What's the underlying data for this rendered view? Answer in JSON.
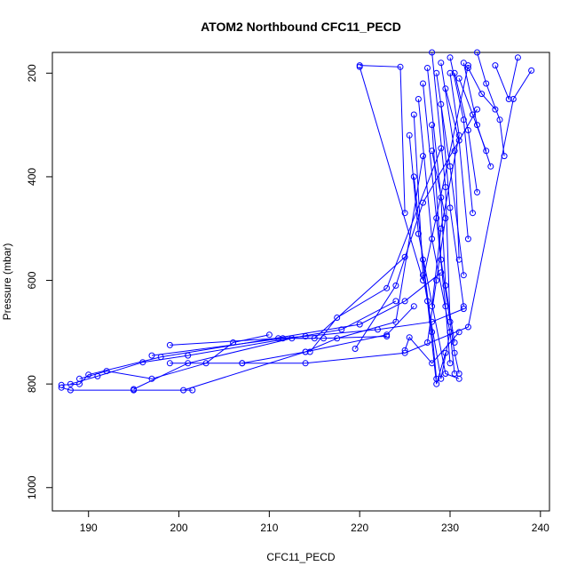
{
  "chart_data": {
    "type": "line",
    "title": "ATOM2 Northbound CFC11_PECD",
    "xlabel": "CFC11_PECD",
    "ylabel": "Pressure (mbar)",
    "xlim": [
      186,
      241
    ],
    "ylim": [
      1045,
      160
    ],
    "y_inverted": true,
    "xticks": [
      190,
      200,
      210,
      220,
      230,
      240
    ],
    "yticks": [
      200,
      400,
      600,
      800,
      1000
    ],
    "grid": false,
    "legend": "none",
    "colors": {
      "series": "#0000ff",
      "axis": "#000000",
      "background": "#ffffff"
    },
    "marker": "open-circle",
    "series": [
      {
        "x": [
          187.0,
          188.0,
          195.0,
          201.5
        ],
        "y": [
          807,
          812,
          812,
          812
        ]
      },
      {
        "x": [
          187.0,
          189.0,
          190.0,
          198.0,
          220.0,
          225.0,
          229.0
        ],
        "y": [
          802,
          800,
          782,
          748,
          685,
          640,
          585
        ]
      },
      {
        "x": [
          188.0,
          191.0,
          196.0,
          201.0,
          218.0,
          224.0
        ],
        "y": [
          800,
          785,
          758,
          745,
          695,
          640
        ]
      },
      {
        "x": [
          189.0,
          192.0,
          197.0,
          203.0,
          206.0,
          210.0
        ],
        "y": [
          790,
          775,
          790,
          760,
          720,
          705
        ]
      },
      {
        "x": [
          199.0,
          211.0,
          214.0,
          222.0,
          228.0,
          231.5
        ],
        "y": [
          725,
          712,
          708,
          695,
          680,
          655
        ]
      },
      {
        "x": [
          197.0,
          211.5,
          216.0,
          223.0
        ],
        "y": [
          745,
          712,
          712,
          708
        ]
      },
      {
        "x": [
          199.0,
          207.0,
          214.0,
          225.0,
          232.0,
          237.0,
          239.0
        ],
        "y": [
          760,
          760,
          760,
          740,
          690,
          250,
          195
        ]
      },
      {
        "x": [
          207.0,
          214.0,
          223.0,
          226.0
        ],
        "y": [
          760,
          738,
          705,
          650
        ]
      },
      {
        "x": [
          195.0,
          201.0,
          212.5,
          215.0,
          225.0
        ],
        "y": [
          810,
          760,
          712,
          712,
          555
        ]
      },
      {
        "x": [
          200.5,
          214.0,
          217.5,
          224.0,
          227.0
        ],
        "y": [
          812,
          738,
          712,
          680,
          360
        ]
      },
      {
        "x": [
          214.5,
          217.5,
          223.0,
          229.0
        ],
        "y": [
          738,
          672,
          615,
          345
        ]
      },
      {
        "x": [
          219.5,
          224.0,
          227.0,
          233.0
        ],
        "y": [
          732,
          610,
          450,
          270
        ]
      },
      {
        "x": [
          220.0,
          224.5,
          225.0
        ],
        "y": [
          185,
          188,
          470
        ]
      },
      {
        "x": [
          220.0,
          227.0,
          232.0
        ],
        "y": [
          188,
          600,
          185
        ]
      },
      {
        "x": [
          225.0,
          225.5,
          228.0,
          231.0
        ],
        "y": [
          735,
          710,
          760,
          700
        ]
      },
      {
        "x": [
          225.5,
          226.5,
          229.5,
          231.0
        ],
        "y": [
          320,
          510,
          780,
          790
        ]
      },
      {
        "x": [
          226.0,
          227.0,
          229.0,
          230.0
        ],
        "y": [
          280,
          590,
          790,
          700
        ]
      },
      {
        "x": [
          226.0,
          227.5,
          228.5,
          229.5
        ],
        "y": [
          400,
          640,
          800,
          740
        ]
      },
      {
        "x": [
          226.5,
          228.0,
          230.0,
          230.5
        ],
        "y": [
          250,
          520,
          700,
          780
        ]
      },
      {
        "x": [
          227.0,
          228.5,
          229.5,
          230.0
        ],
        "y": [
          220,
          480,
          650,
          760
        ]
      },
      {
        "x": [
          227.0,
          228.0,
          228.5
        ],
        "y": [
          560,
          700,
          790
        ]
      },
      {
        "x": [
          227.5,
          229.0,
          229.5,
          230.5
        ],
        "y": [
          190,
          440,
          610,
          720
        ]
      },
      {
        "x": [
          228.0,
          229.0,
          230.5,
          231.0
        ],
        "y": [
          300,
          560,
          740,
          780
        ]
      },
      {
        "x": [
          228.0,
          229.5,
          230.0
        ],
        "y": [
          160,
          420,
          680
        ]
      },
      {
        "x": [
          228.5,
          230.0,
          231.5
        ],
        "y": [
          200,
          380,
          590
        ]
      },
      {
        "x": [
          229.0,
          230.5,
          231.0
        ],
        "y": [
          180,
          350,
          560
        ]
      },
      {
        "x": [
          229.0,
          230.0,
          231.5
        ],
        "y": [
          260,
          460,
          650
        ]
      },
      {
        "x": [
          229.5,
          231.0,
          232.0
        ],
        "y": [
          230,
          330,
          520
        ]
      },
      {
        "x": [
          230.0,
          231.5,
          232.5
        ],
        "y": [
          170,
          290,
          470
        ]
      },
      {
        "x": [
          230.5,
          232.0,
          233.0
        ],
        "y": [
          200,
          310,
          430
        ]
      },
      {
        "x": [
          231.0,
          232.5,
          234.0
        ],
        "y": [
          210,
          280,
          350
        ]
      },
      {
        "x": [
          231.5,
          233.0,
          234.5
        ],
        "y": [
          180,
          300,
          380
        ]
      },
      {
        "x": [
          232.0,
          233.5,
          235.0
        ],
        "y": [
          190,
          240,
          270
        ]
      },
      {
        "x": [
          233.0,
          234.0,
          235.5,
          236.0
        ],
        "y": [
          160,
          220,
          290,
          360
        ]
      },
      {
        "x": [
          235.0,
          236.5,
          237.5
        ],
        "y": [
          185,
          250,
          170
        ]
      },
      {
        "x": [
          230.0,
          231.0,
          229.0,
          228.0
        ],
        "y": [
          200,
          320,
          500,
          650
        ]
      },
      {
        "x": [
          228.0,
          229.5,
          228.5,
          227.5
        ],
        "y": [
          350,
          480,
          600,
          720
        ]
      }
    ]
  }
}
